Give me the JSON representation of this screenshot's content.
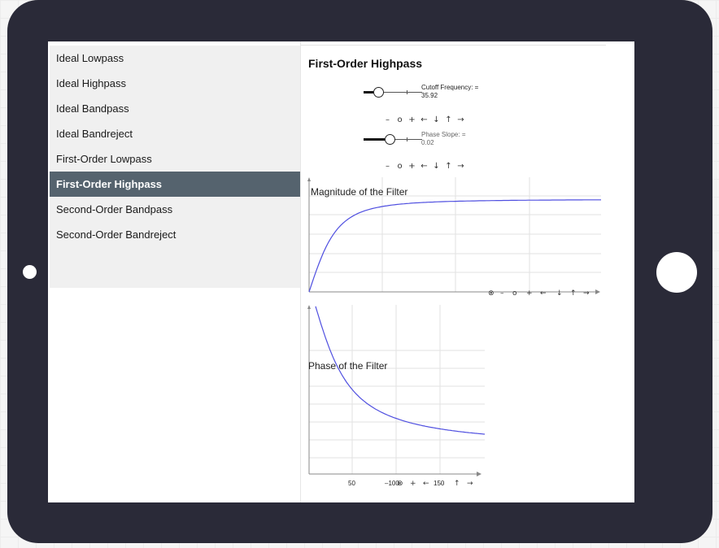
{
  "sidebar": {
    "items": [
      {
        "label": "Ideal Lowpass",
        "active": false
      },
      {
        "label": "Ideal Highpass",
        "active": false
      },
      {
        "label": "Ideal Bandpass",
        "active": false
      },
      {
        "label": "Ideal Bandreject",
        "active": false
      },
      {
        "label": "First-Order Lowpass",
        "active": false
      },
      {
        "label": "First-Order Highpass",
        "active": true
      },
      {
        "label": "Second-Order Bandpass",
        "active": false
      },
      {
        "label": "Second-Order Bandreject",
        "active": false
      }
    ]
  },
  "main": {
    "title": "First-Order Highpass",
    "sliders": [
      {
        "label": "Cutoff Frequency: =",
        "value": "35.92",
        "level": 0.25
      },
      {
        "label": "Phase Slope: =",
        "value": "0.02",
        "level": 0.45
      }
    ],
    "controls": {
      "minus": "–",
      "reset": "o",
      "plus": "+",
      "left": "←",
      "down": "↓",
      "up": "↑",
      "right": "→",
      "zoom": "⊗"
    }
  },
  "plots": {
    "magnitude": {
      "title": "Magnitude of the Filter"
    },
    "phase": {
      "title": "Phase of the Filter",
      "ticks": [
        "50",
        "–100",
        "150"
      ]
    }
  },
  "colors": {
    "accent": "#55636e",
    "curve": "#4f4fe0",
    "bezel": "#2a2a38"
  }
}
